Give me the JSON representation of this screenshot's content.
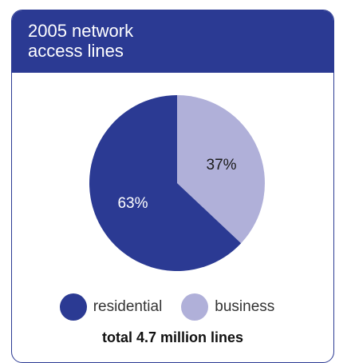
{
  "header": {
    "title": "2005 network access lines"
  },
  "colors": {
    "residential": "#2b3a93",
    "business": "#b0b0d9",
    "border": "#2b3a93"
  },
  "chart_data": {
    "type": "pie",
    "title": "2005 network access lines",
    "slices": [
      {
        "name": "business",
        "value": 37,
        "label": "37%",
        "color": "#b0b0d9"
      },
      {
        "name": "residential",
        "value": 63,
        "label": "63%",
        "color": "#2b3a93"
      }
    ],
    "legend": [
      {
        "label": "residential",
        "color": "#2b3a93"
      },
      {
        "label": "business",
        "color": "#b0b0d9"
      }
    ],
    "legend_placement": "bottom",
    "footnote": "total 4.7 million lines"
  }
}
